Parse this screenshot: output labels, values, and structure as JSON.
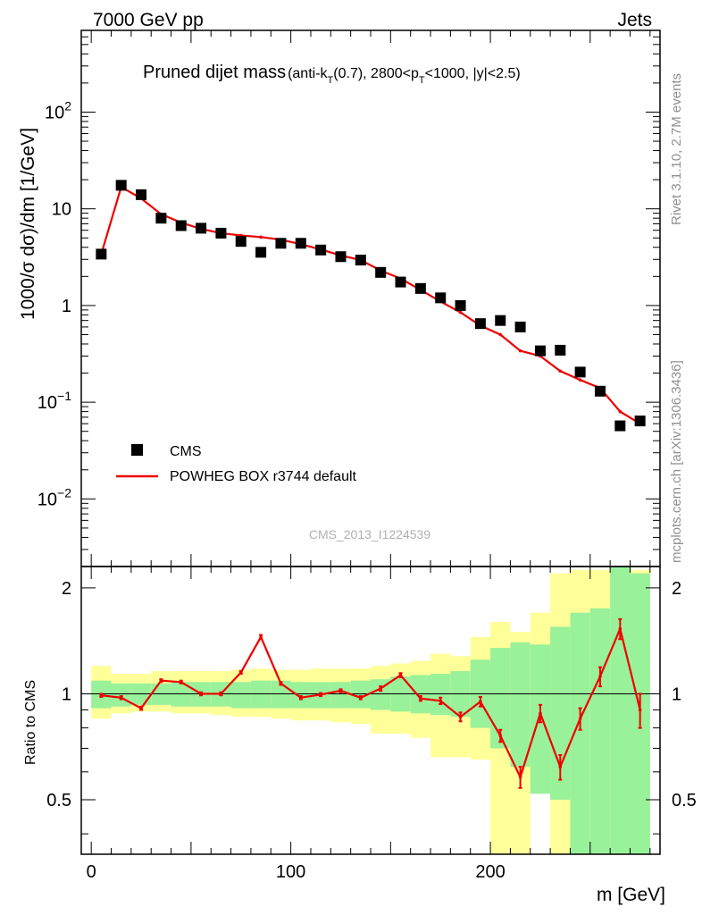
{
  "header": {
    "energy_label": "7000 GeV pp",
    "process_label": "Jets",
    "title_main": "Pruned dijet mass",
    "title_sub": "(anti-kT(0.7), 2800<pT<1000, |y|<2.5)",
    "analysis_id": "CMS_2013_I1224539",
    "side_rivet": "Rivet 3.1.10,  2.7M events",
    "side_mcplots": "mcplots.cern.ch [arXiv:1306.3436]"
  },
  "colors": {
    "data": "#000000",
    "mc": "#ee0000",
    "band_inner": "#99f199",
    "band_outer": "#ffff99"
  },
  "chart_data": [
    {
      "type": "scatter",
      "name": "main-panel",
      "ylabel": "1000/σ dσ)/dm [1/GeV]",
      "ylog": true,
      "ylim": [
        0.002,
        700
      ],
      "xlim": [
        -5,
        285
      ],
      "ytick_labels": [
        "10^-2",
        "10^-1",
        "1",
        "10",
        "10^2"
      ],
      "legend_placement": "lower-left",
      "x": [
        5,
        15,
        25,
        35,
        45,
        55,
        65,
        75,
        85,
        95,
        105,
        115,
        125,
        135,
        145,
        155,
        165,
        175,
        185,
        195,
        205,
        215,
        225,
        235,
        245,
        255,
        265,
        275
      ],
      "series": [
        {
          "name": "CMS",
          "values": [
            3.4,
            17.5,
            14.0,
            8.0,
            6.7,
            6.3,
            5.6,
            4.6,
            3.55,
            4.4,
            4.4,
            3.75,
            3.2,
            2.95,
            2.2,
            1.75,
            1.5,
            1.2,
            1.0,
            0.65,
            0.7,
            0.6,
            0.34,
            0.345,
            0.205,
            0.13,
            0.057,
            0.064
          ]
        },
        {
          "name": "POWHEG BOX r3744 default",
          "values": [
            3.4,
            16.8,
            12.8,
            8.8,
            7.2,
            6.2,
            5.6,
            5.3,
            5.1,
            4.8,
            4.3,
            3.8,
            3.3,
            2.95,
            2.3,
            1.9,
            1.45,
            1.1,
            0.85,
            0.62,
            0.5,
            0.34,
            0.3,
            0.21,
            0.17,
            0.14,
            0.08,
            0.06
          ]
        }
      ]
    },
    {
      "type": "line",
      "name": "ratio-panel",
      "xlabel": "m [GeV]",
      "ylabel": "Ratio to CMS",
      "ylim": [
        0.35,
        2.3
      ],
      "xlim": [
        -5,
        285
      ],
      "x_tick_labels": [
        "0",
        "100",
        "200"
      ],
      "y_tick_labels": [
        "0.5",
        "1",
        "2"
      ],
      "x": [
        5,
        15,
        25,
        35,
        45,
        55,
        65,
        75,
        85,
        95,
        105,
        115,
        125,
        135,
        145,
        155,
        165,
        175,
        185,
        195,
        205,
        215,
        225,
        235,
        245,
        255,
        265,
        275
      ],
      "ratio": [
        0.99,
        0.975,
        0.91,
        1.09,
        1.08,
        1.0,
        1.0,
        1.15,
        1.45,
        1.07,
        0.975,
        0.995,
        1.02,
        0.975,
        1.035,
        1.13,
        0.97,
        0.955,
        0.86,
        0.95,
        0.76,
        0.58,
        0.88,
        0.62,
        0.85,
        1.12,
        1.53,
        0.9
      ],
      "ratio_err": [
        0.01,
        0.01,
        0.01,
        0.01,
        0.01,
        0.01,
        0.01,
        0.01,
        0.02,
        0.01,
        0.01,
        0.01,
        0.01,
        0.01,
        0.015,
        0.015,
        0.015,
        0.02,
        0.025,
        0.03,
        0.03,
        0.04,
        0.05,
        0.05,
        0.06,
        0.07,
        0.1,
        0.1
      ],
      "band_inner": [
        [
          0.91,
          1.09
        ],
        [
          0.92,
          1.07
        ],
        [
          0.93,
          1.07
        ],
        [
          0.93,
          1.07
        ],
        [
          0.92,
          1.08
        ],
        [
          0.92,
          1.08
        ],
        [
          0.92,
          1.08
        ],
        [
          0.91,
          1.08
        ],
        [
          0.91,
          1.09
        ],
        [
          0.91,
          1.09
        ],
        [
          0.91,
          1.08
        ],
        [
          0.91,
          1.08
        ],
        [
          0.91,
          1.08
        ],
        [
          0.91,
          1.09
        ],
        [
          0.9,
          1.1
        ],
        [
          0.89,
          1.12
        ],
        [
          0.88,
          1.13
        ],
        [
          0.87,
          1.14
        ],
        [
          0.86,
          1.16
        ],
        [
          0.8,
          1.25
        ],
        [
          0.7,
          1.35
        ],
        [
          0.62,
          1.4
        ],
        [
          0.52,
          1.38
        ],
        [
          0.5,
          1.55
        ],
        [
          0.3,
          1.7
        ],
        [
          0.3,
          1.75
        ],
        [
          0.3,
          2.3
        ],
        [
          0.3,
          2.2
        ]
      ],
      "band_outer": [
        [
          0.85,
          1.2
        ],
        [
          0.88,
          1.14
        ],
        [
          0.89,
          1.14
        ],
        [
          0.89,
          1.16
        ],
        [
          0.88,
          1.16
        ],
        [
          0.88,
          1.16
        ],
        [
          0.87,
          1.16
        ],
        [
          0.86,
          1.17
        ],
        [
          0.86,
          1.18
        ],
        [
          0.85,
          1.17
        ],
        [
          0.84,
          1.17
        ],
        [
          0.84,
          1.18
        ],
        [
          0.83,
          1.18
        ],
        [
          0.82,
          1.18
        ],
        [
          0.77,
          1.2
        ],
        [
          0.77,
          1.22
        ],
        [
          0.75,
          1.24
        ],
        [
          0.66,
          1.3
        ],
        [
          0.66,
          1.28
        ],
        [
          0.65,
          1.45
        ],
        [
          0.3,
          1.6
        ],
        [
          0.3,
          1.5
        ],
        [
          0.55,
          1.7
        ],
        [
          0.3,
          2.2
        ],
        [
          0.3,
          2.25
        ],
        [
          0.3,
          2.25
        ],
        [
          0.3,
          2.3
        ],
        [
          0.3,
          2.25
        ]
      ]
    }
  ]
}
